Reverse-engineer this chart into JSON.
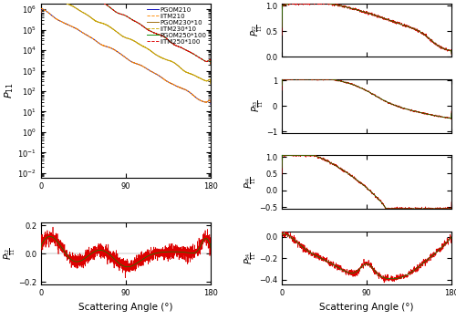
{
  "legend_labels": [
    "PGOM210",
    "IITM210",
    "PGOM230*10",
    "IITM230*10",
    "PGOM250*100",
    "IITM250*100"
  ],
  "color_blue": "#0000bb",
  "color_orange_dashed": "#ff8800",
  "color_brown": "#996600",
  "color_yellow_dashed": "#ccaa00",
  "color_green": "#008800",
  "color_red_dashed": "#dd0000",
  "color_green2": "#008800",
  "color_red2": "#dd0000",
  "xlabel": "Scattering Angle (°)",
  "p11_ylim_lo": 0.006,
  "p11_ylim_hi": 2000000.0,
  "p12_ylim": [
    -0.22,
    0.22
  ],
  "p22_ylim": [
    0,
    1.05
  ],
  "p33_ylim": [
    -1.05,
    1.05
  ],
  "p44_ylim": [
    -0.55,
    1.05
  ],
  "p34_ylim": [
    -0.45,
    0.05
  ]
}
